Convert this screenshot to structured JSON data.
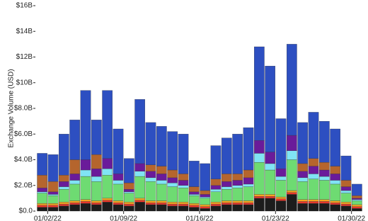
{
  "chart_data": {
    "type": "stacked_bar",
    "y_label": "Exchange Volume (USD)",
    "categories": [
      null,
      "01/02/22",
      null,
      null,
      null,
      null,
      null,
      null,
      "01/09/22",
      null,
      null,
      null,
      null,
      null,
      null,
      "01/16/22",
      null,
      null,
      null,
      null,
      null,
      null,
      "01/23/22",
      null,
      null,
      null,
      null,
      null,
      null,
      "01/30/22"
    ],
    "ylim": [
      0,
      16000000000.0
    ],
    "yticks": [
      {
        "value": 0,
        "label": "$0.0"
      },
      {
        "value": 2000000000.0,
        "label": "$2.0B"
      },
      {
        "value": 4000000000.0,
        "label": "$4.0B"
      },
      {
        "value": 6000000000.0,
        "label": "$6.0B"
      },
      {
        "value": 8000000000.0,
        "label": "$8.0B"
      },
      {
        "value": 10000000000.0,
        "label": "$10B"
      },
      {
        "value": 12000000000.0,
        "label": "$12B"
      },
      {
        "value": 14000000000.0,
        "label": "$14B"
      },
      {
        "value": 16000000000.0,
        "label": "$16B"
      }
    ],
    "series": [
      {
        "color": "#1c1c1c",
        "values": [
          300000000.0,
          300000000.0,
          400000000.0,
          500000000.0,
          600000000.0,
          500000000.0,
          700000000.0,
          500000000.0,
          400000000.0,
          700000000.0,
          500000000.0,
          500000000.0,
          400000000.0,
          400000000.0,
          300000000.0,
          200000000.0,
          400000000.0,
          500000000.0,
          500000000.0,
          500000000.0,
          1000000000.0,
          1000000000.0,
          800000000.0,
          1300000000.0,
          600000000.0,
          600000000.0,
          600000000.0,
          500000000.0,
          400000000.0,
          200000000.0
        ]
      },
      {
        "color": "#e8372c",
        "values": [
          150000000.0,
          150000000.0,
          150000000.0,
          150000000.0,
          150000000.0,
          150000000.0,
          150000000.0,
          150000000.0,
          150000000.0,
          150000000.0,
          150000000.0,
          150000000.0,
          150000000.0,
          150000000.0,
          150000000.0,
          150000000.0,
          150000000.0,
          150000000.0,
          150000000.0,
          150000000.0,
          150000000.0,
          150000000.0,
          150000000.0,
          150000000.0,
          150000000.0,
          150000000.0,
          150000000.0,
          150000000.0,
          150000000.0,
          150000000.0
        ]
      },
      {
        "color": "#f5a623",
        "values": [
          150000000.0,
          150000000.0,
          150000000.0,
          150000000.0,
          150000000.0,
          150000000.0,
          150000000.0,
          150000000.0,
          150000000.0,
          150000000.0,
          150000000.0,
          150000000.0,
          150000000.0,
          150000000.0,
          150000000.0,
          150000000.0,
          150000000.0,
          150000000.0,
          150000000.0,
          150000000.0,
          150000000.0,
          150000000.0,
          150000000.0,
          150000000.0,
          150000000.0,
          150000000.0,
          150000000.0,
          150000000.0,
          150000000.0,
          150000000.0
        ]
      },
      {
        "color": "#6edb72",
        "values": [
          800000000.0,
          600000000.0,
          1000000000.0,
          1300000000.0,
          1800000000.0,
          1500000000.0,
          1800000000.0,
          1300000000.0,
          700000000.0,
          1700000000.0,
          1500000000.0,
          1300000000.0,
          1200000000.0,
          1100000000.0,
          600000000.0,
          500000000.0,
          800000000.0,
          900000000.0,
          1000000000.0,
          1100000000.0,
          2500000000.0,
          1900000000.0,
          1300000000.0,
          2400000000.0,
          1400000000.0,
          1600000000.0,
          1500000000.0,
          1300000000.0,
          700000000.0,
          300000000.0
        ]
      },
      {
        "color": "#80e4f4",
        "values": [
          100000000.0,
          100000000.0,
          200000000.0,
          300000000.0,
          500000000.0,
          400000000.0,
          500000000.0,
          300000000.0,
          100000000.0,
          400000000.0,
          300000000.0,
          300000000.0,
          300000000.0,
          200000000.0,
          100000000.0,
          100000000.0,
          200000000.0,
          200000000.0,
          200000000.0,
          200000000.0,
          700000000.0,
          500000000.0,
          300000000.0,
          700000000.0,
          300000000.0,
          400000000.0,
          300000000.0,
          300000000.0,
          200000000.0,
          100000000.0
        ]
      },
      {
        "color": "#6a1b9a",
        "values": [
          300000000.0,
          200000000.0,
          400000000.0,
          500000000.0,
          800000000.0,
          600000000.0,
          800000000.0,
          500000000.0,
          200000000.0,
          600000000.0,
          500000000.0,
          500000000.0,
          400000000.0,
          400000000.0,
          200000000.0,
          200000000.0,
          300000000.0,
          400000000.0,
          400000000.0,
          500000000.0,
          1000000000.0,
          900000000.0,
          600000000.0,
          1200000000.0,
          500000000.0,
          600000000.0,
          500000000.0,
          500000000.0,
          300000000.0,
          100000000.0
        ]
      },
      {
        "color": "#b5652d",
        "values": [
          1000000000.0,
          800000000.0,
          500000000.0,
          1100000000.0,
          0,
          1100000000.0,
          0,
          0,
          500000000.0,
          0,
          500000000.0,
          600000000.0,
          600000000.0,
          500000000.0,
          400000000.0,
          300000000.0,
          500000000.0,
          600000000.0,
          500000000.0,
          600000000.0,
          0,
          0,
          0,
          0,
          600000000.0,
          600000000.0,
          600000000.0,
          600000000.0,
          500000000.0,
          200000000.0
        ]
      },
      {
        "color": "#2d4fc1",
        "values": [
          1700000000.0,
          2100000000.0,
          3200000000.0,
          3100000000.0,
          5400000000.0,
          2700000000.0,
          5300000000.0,
          3500000000.0,
          1900000000.0,
          5000000000.0,
          3300000000.0,
          3100000000.0,
          3000000000.0,
          3100000000.0,
          2000000000.0,
          2100000000.0,
          2600000000.0,
          2800000000.0,
          3100000000.0,
          3300000000.0,
          7300000000.0,
          6700000000.0,
          3900000000.0,
          7100000000.0,
          3200000000.0,
          3600000000.0,
          3200000000.0,
          2900000000.0,
          1900000000.0,
          900000000.0
        ]
      }
    ]
  }
}
